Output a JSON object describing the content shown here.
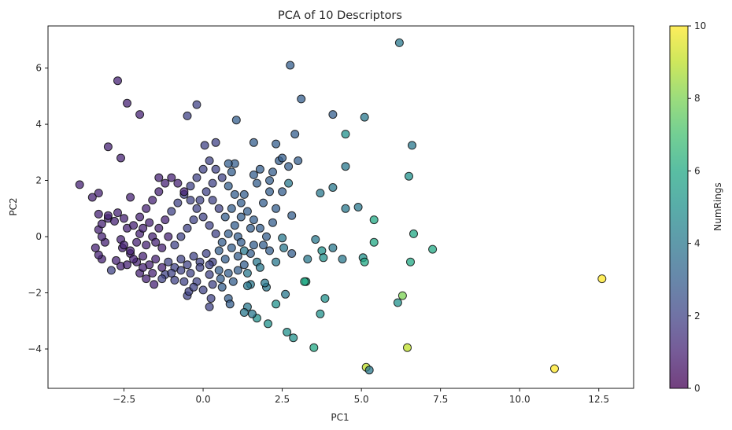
{
  "chart_data": {
    "type": "scatter",
    "title": "PCA of 10 Descriptors",
    "xlabel": "PC1",
    "ylabel": "PC2",
    "xlim": [
      -4.9,
      13.6
    ],
    "ylim": [
      -5.4,
      7.5
    ],
    "xticks": [
      -2.5,
      0.0,
      2.5,
      5.0,
      7.5,
      10.0,
      12.5
    ],
    "xtick_labels": [
      "−2.5",
      "0.0",
      "2.5",
      "5.0",
      "7.5",
      "10.0",
      "12.5"
    ],
    "yticks": [
      -4,
      -2,
      0,
      2,
      4,
      6
    ],
    "ytick_labels": [
      "−4",
      "−2",
      "0",
      "2",
      "4",
      "6"
    ],
    "grid": false,
    "colorbar": {
      "label": "NumRings",
      "range": [
        0,
        10
      ],
      "ticks": [
        0,
        2,
        4,
        6,
        8,
        10
      ],
      "colormap": "viridis"
    },
    "points": [
      {
        "x": 12.6,
        "y": -1.5,
        "c": 10
      },
      {
        "x": 11.1,
        "y": -4.7,
        "c": 10
      },
      {
        "x": 6.2,
        "y": 6.9,
        "c": 4
      },
      {
        "x": 2.75,
        "y": 6.1,
        "c": 3
      },
      {
        "x": -2.7,
        "y": 5.55,
        "c": 1
      },
      {
        "x": -2.4,
        "y": 4.75,
        "c": 1
      },
      {
        "x": -2.0,
        "y": 4.35,
        "c": 1
      },
      {
        "x": -0.5,
        "y": 4.3,
        "c": 2
      },
      {
        "x": -0.2,
        "y": 4.7,
        "c": 2
      },
      {
        "x": 1.05,
        "y": 4.15,
        "c": 3
      },
      {
        "x": 3.1,
        "y": 4.9,
        "c": 3
      },
      {
        "x": 4.1,
        "y": 4.35,
        "c": 3
      },
      {
        "x": 5.1,
        "y": 4.25,
        "c": 4
      },
      {
        "x": 4.5,
        "y": 3.65,
        "c": 5
      },
      {
        "x": 6.6,
        "y": 3.25,
        "c": 4
      },
      {
        "x": -3.0,
        "y": 3.2,
        "c": 1
      },
      {
        "x": -2.6,
        "y": 2.8,
        "c": 1
      },
      {
        "x": 4.5,
        "y": 2.5,
        "c": 4
      },
      {
        "x": 6.5,
        "y": 2.15,
        "c": 5
      },
      {
        "x": 2.9,
        "y": 3.65,
        "c": 3
      },
      {
        "x": 2.3,
        "y": 3.3,
        "c": 3
      },
      {
        "x": 1.6,
        "y": 3.35,
        "c": 3
      },
      {
        "x": 0.4,
        "y": 3.35,
        "c": 2
      },
      {
        "x": 0.05,
        "y": 3.25,
        "c": 2
      },
      {
        "x": -3.9,
        "y": 1.85,
        "c": 1
      },
      {
        "x": -3.3,
        "y": 1.55,
        "c": 1
      },
      {
        "x": -3.5,
        "y": 1.4,
        "c": 1
      },
      {
        "x": -2.3,
        "y": 1.4,
        "c": 1
      },
      {
        "x": 3.7,
        "y": 1.55,
        "c": 4
      },
      {
        "x": 4.1,
        "y": 1.75,
        "c": 4
      },
      {
        "x": 4.5,
        "y": 1.0,
        "c": 4
      },
      {
        "x": 4.9,
        "y": 1.05,
        "c": 4
      },
      {
        "x": 5.4,
        "y": 0.6,
        "c": 6
      },
      {
        "x": 6.65,
        "y": 0.1,
        "c": 6
      },
      {
        "x": 7.25,
        "y": -0.45,
        "c": 6
      },
      {
        "x": 5.4,
        "y": -0.2,
        "c": 6
      },
      {
        "x": 6.55,
        "y": -0.9,
        "c": 6
      },
      {
        "x": 5.05,
        "y": -0.75,
        "c": 5
      },
      {
        "x": 5.1,
        "y": -0.9,
        "c": 6
      },
      {
        "x": 4.4,
        "y": -0.8,
        "c": 4
      },
      {
        "x": 4.1,
        "y": -0.4,
        "c": 4
      },
      {
        "x": 3.55,
        "y": -0.1,
        "c": 4
      },
      {
        "x": 3.75,
        "y": -0.5,
        "c": 5
      },
      {
        "x": 3.8,
        "y": -0.75,
        "c": 5
      },
      {
        "x": 3.3,
        "y": -0.8,
        "c": 4
      },
      {
        "x": 2.8,
        "y": 0.75,
        "c": 3
      },
      {
        "x": 2.5,
        "y": -0.05,
        "c": 4
      },
      {
        "x": 2.55,
        "y": -0.4,
        "c": 4
      },
      {
        "x": 2.3,
        "y": -0.9,
        "c": 4
      },
      {
        "x": 3.25,
        "y": -1.6,
        "c": 6
      },
      {
        "x": 3.85,
        "y": -2.2,
        "c": 5
      },
      {
        "x": 3.7,
        "y": -2.75,
        "c": 5
      },
      {
        "x": 2.6,
        "y": -2.05,
        "c": 4
      },
      {
        "x": 2.3,
        "y": -2.4,
        "c": 5
      },
      {
        "x": 2.65,
        "y": -3.4,
        "c": 5
      },
      {
        "x": 2.85,
        "y": -3.6,
        "c": 5
      },
      {
        "x": 2.05,
        "y": -3.1,
        "c": 5
      },
      {
        "x": 1.7,
        "y": -2.9,
        "c": 5
      },
      {
        "x": 3.5,
        "y": -3.95,
        "c": 6
      },
      {
        "x": 6.15,
        "y": -2.35,
        "c": 5
      },
      {
        "x": 6.3,
        "y": -2.1,
        "c": 8
      },
      {
        "x": 6.45,
        "y": -3.95,
        "c": 9
      },
      {
        "x": 5.15,
        "y": -4.65,
        "c": 9
      },
      {
        "x": 5.25,
        "y": -4.75,
        "c": 4
      },
      {
        "x": 1.4,
        "y": -2.5,
        "c": 4
      },
      {
        "x": 1.3,
        "y": -2.7,
        "c": 4
      },
      {
        "x": 1.55,
        "y": -2.75,
        "c": 4
      },
      {
        "x": 0.8,
        "y": -2.2,
        "c": 3
      },
      {
        "x": 0.85,
        "y": -2.4,
        "c": 3
      },
      {
        "x": 0.2,
        "y": -2.5,
        "c": 2
      },
      {
        "x": 0.25,
        "y": -2.2,
        "c": 2
      },
      {
        "x": -0.5,
        "y": -2.1,
        "c": 2
      },
      {
        "x": -0.45,
        "y": -1.95,
        "c": 2
      },
      {
        "x": 2.0,
        "y": -1.8,
        "c": 4
      },
      {
        "x": 1.95,
        "y": -1.65,
        "c": 4
      },
      {
        "x": 1.5,
        "y": -1.7,
        "c": 4
      },
      {
        "x": 1.4,
        "y": -1.75,
        "c": 4
      },
      {
        "x": 0.95,
        "y": -1.6,
        "c": 3
      },
      {
        "x": 0.55,
        "y": -1.5,
        "c": 3
      },
      {
        "x": 0.2,
        "y": -1.35,
        "c": 2
      },
      {
        "x": -0.2,
        "y": -1.6,
        "c": 2
      },
      {
        "x": -0.6,
        "y": -1.6,
        "c": 2
      },
      {
        "x": -0.9,
        "y": -1.55,
        "c": 2
      },
      {
        "x": -1.2,
        "y": -1.35,
        "c": 2
      },
      {
        "x": -1.55,
        "y": -1.7,
        "c": 1
      },
      {
        "x": -1.8,
        "y": -1.5,
        "c": 1
      },
      {
        "x": -2.0,
        "y": -1.3,
        "c": 1
      },
      {
        "x": -2.6,
        "y": -1.05,
        "c": 1
      },
      {
        "x": -2.75,
        "y": -0.85,
        "c": 1
      },
      {
        "x": -2.9,
        "y": -1.2,
        "c": 2
      },
      {
        "x": -3.2,
        "y": -0.8,
        "c": 1
      },
      {
        "x": -3.3,
        "y": -0.65,
        "c": 1
      },
      {
        "x": -3.4,
        "y": -0.4,
        "c": 1
      },
      {
        "x": -3.1,
        "y": -0.2,
        "c": 1
      },
      {
        "x": -3.2,
        "y": 0.0,
        "c": 1
      },
      {
        "x": -3.3,
        "y": 0.25,
        "c": 1
      },
      {
        "x": -3.2,
        "y": 0.45,
        "c": 1
      },
      {
        "x": -3.0,
        "y": 0.65,
        "c": 1
      },
      {
        "x": -3.3,
        "y": 0.8,
        "c": 1
      },
      {
        "x": -3.0,
        "y": 0.75,
        "c": 1
      },
      {
        "x": -2.8,
        "y": 0.55,
        "c": 1
      },
      {
        "x": -2.7,
        "y": 0.85,
        "c": 1
      },
      {
        "x": -2.5,
        "y": 0.65,
        "c": 1
      },
      {
        "x": -2.4,
        "y": 0.3,
        "c": 1
      },
      {
        "x": -2.6,
        "y": -0.1,
        "c": 1
      },
      {
        "x": -2.55,
        "y": -0.4,
        "c": 1
      },
      {
        "x": -2.3,
        "y": -0.6,
        "c": 1
      },
      {
        "x": -2.1,
        "y": -0.9,
        "c": 1
      },
      {
        "x": -1.9,
        "y": -0.7,
        "c": 1
      },
      {
        "x": -1.7,
        "y": -1.0,
        "c": 1
      },
      {
        "x": -1.5,
        "y": -0.8,
        "c": 1
      },
      {
        "x": -1.3,
        "y": -1.1,
        "c": 1
      },
      {
        "x": -1.1,
        "y": -0.9,
        "c": 2
      },
      {
        "x": -0.9,
        "y": -1.1,
        "c": 2
      },
      {
        "x": -0.7,
        "y": -0.8,
        "c": 2
      },
      {
        "x": -0.5,
        "y": -1.0,
        "c": 2
      },
      {
        "x": -0.3,
        "y": -0.7,
        "c": 2
      },
      {
        "x": -0.1,
        "y": -0.9,
        "c": 2
      },
      {
        "x": 0.1,
        "y": -0.6,
        "c": 2
      },
      {
        "x": 0.3,
        "y": -0.9,
        "c": 2
      },
      {
        "x": 0.5,
        "y": -0.5,
        "c": 3
      },
      {
        "x": 0.7,
        "y": -0.8,
        "c": 3
      },
      {
        "x": 0.9,
        "y": -0.4,
        "c": 3
      },
      {
        "x": 1.1,
        "y": -0.7,
        "c": 3
      },
      {
        "x": 1.3,
        "y": -1.0,
        "c": 3
      },
      {
        "x": 1.5,
        "y": -0.6,
        "c": 3
      },
      {
        "x": 1.7,
        "y": -0.9,
        "c": 4
      },
      {
        "x": 1.9,
        "y": -0.3,
        "c": 3
      },
      {
        "x": 2.0,
        "y": 0.0,
        "c": 3
      },
      {
        "x": 1.8,
        "y": 0.3,
        "c": 3
      },
      {
        "x": 1.6,
        "y": 0.6,
        "c": 3
      },
      {
        "x": 1.4,
        "y": 0.9,
        "c": 3
      },
      {
        "x": 1.2,
        "y": 1.2,
        "c": 3
      },
      {
        "x": 1.0,
        "y": 1.5,
        "c": 3
      },
      {
        "x": 0.8,
        "y": 1.8,
        "c": 3
      },
      {
        "x": 0.6,
        "y": 2.1,
        "c": 2
      },
      {
        "x": 0.4,
        "y": 2.4,
        "c": 2
      },
      {
        "x": 0.2,
        "y": 2.7,
        "c": 2
      },
      {
        "x": 0.0,
        "y": 2.4,
        "c": 2
      },
      {
        "x": -0.2,
        "y": 2.1,
        "c": 2
      },
      {
        "x": -0.4,
        "y": 1.8,
        "c": 2
      },
      {
        "x": -0.6,
        "y": 1.5,
        "c": 2
      },
      {
        "x": -0.8,
        "y": 1.2,
        "c": 2
      },
      {
        "x": -1.0,
        "y": 0.9,
        "c": 2
      },
      {
        "x": -1.2,
        "y": 0.6,
        "c": 1
      },
      {
        "x": -1.4,
        "y": 0.3,
        "c": 1
      },
      {
        "x": -1.6,
        "y": 0.0,
        "c": 1
      },
      {
        "x": -1.8,
        "y": -0.3,
        "c": 1
      },
      {
        "x": -2.0,
        "y": 0.1,
        "c": 1
      },
      {
        "x": -2.2,
        "y": 0.4,
        "c": 1
      },
      {
        "x": -2.0,
        "y": 0.7,
        "c": 1
      },
      {
        "x": -1.8,
        "y": 1.0,
        "c": 1
      },
      {
        "x": -1.6,
        "y": 1.3,
        "c": 1
      },
      {
        "x": -1.4,
        "y": 1.6,
        "c": 1
      },
      {
        "x": -1.2,
        "y": 1.9,
        "c": 1
      },
      {
        "x": -1.4,
        "y": 2.1,
        "c": 1
      },
      {
        "x": -1.0,
        "y": 2.1,
        "c": 1
      },
      {
        "x": -0.8,
        "y": 1.9,
        "c": 1
      },
      {
        "x": -0.6,
        "y": 1.6,
        "c": 1
      },
      {
        "x": -0.4,
        "y": 1.3,
        "c": 2
      },
      {
        "x": -0.2,
        "y": 1.0,
        "c": 2
      },
      {
        "x": 0.0,
        "y": 0.7,
        "c": 2
      },
      {
        "x": 0.2,
        "y": 0.4,
        "c": 2
      },
      {
        "x": 0.4,
        "y": 0.1,
        "c": 2
      },
      {
        "x": 0.6,
        "y": -0.2,
        "c": 3
      },
      {
        "x": 0.8,
        "y": 0.1,
        "c": 3
      },
      {
        "x": 1.0,
        "y": 0.4,
        "c": 3
      },
      {
        "x": 1.2,
        "y": 0.7,
        "c": 3
      },
      {
        "x": 0.9,
        "y": 1.0,
        "c": 3
      },
      {
        "x": 0.7,
        "y": 0.7,
        "c": 3
      },
      {
        "x": 0.5,
        "y": 1.0,
        "c": 2
      },
      {
        "x": 0.3,
        "y": 1.3,
        "c": 2
      },
      {
        "x": 0.1,
        "y": 1.6,
        "c": 2
      },
      {
        "x": -0.1,
        "y": 1.3,
        "c": 2
      },
      {
        "x": -0.3,
        "y": 0.6,
        "c": 2
      },
      {
        "x": -0.5,
        "y": 0.3,
        "c": 2
      },
      {
        "x": -0.7,
        "y": 0.0,
        "c": 2
      },
      {
        "x": -0.9,
        "y": -0.3,
        "c": 2
      },
      {
        "x": -1.1,
        "y": 0.0,
        "c": 1
      },
      {
        "x": -1.3,
        "y": -0.4,
        "c": 1
      },
      {
        "x": -1.5,
        "y": -0.2,
        "c": 1
      },
      {
        "x": -1.7,
        "y": 0.5,
        "c": 1
      },
      {
        "x": -1.9,
        "y": 0.3,
        "c": 1
      },
      {
        "x": -2.1,
        "y": -0.2,
        "c": 1
      },
      {
        "x": -2.3,
        "y": -0.5,
        "c": 1
      },
      {
        "x": -2.5,
        "y": -0.3,
        "c": 1
      },
      {
        "x": -2.2,
        "y": -0.8,
        "c": 1
      },
      {
        "x": -2.4,
        "y": -1.0,
        "c": 1
      },
      {
        "x": -1.9,
        "y": -1.1,
        "c": 1
      },
      {
        "x": -1.6,
        "y": -1.3,
        "c": 1
      },
      {
        "x": -1.3,
        "y": -1.5,
        "c": 2
      },
      {
        "x": -1.0,
        "y": -1.3,
        "c": 2
      },
      {
        "x": -0.7,
        "y": -1.2,
        "c": 2
      },
      {
        "x": -0.4,
        "y": -1.3,
        "c": 2
      },
      {
        "x": -0.1,
        "y": -1.1,
        "c": 2
      },
      {
        "x": 0.2,
        "y": -1.0,
        "c": 2
      },
      {
        "x": 0.5,
        "y": -1.2,
        "c": 3
      },
      {
        "x": 0.8,
        "y": -1.3,
        "c": 3
      },
      {
        "x": 1.1,
        "y": -1.2,
        "c": 3
      },
      {
        "x": 1.4,
        "y": -1.3,
        "c": 4
      },
      {
        "x": 0.6,
        "y": -1.8,
        "c": 3
      },
      {
        "x": 0.3,
        "y": -1.7,
        "c": 2
      },
      {
        "x": 0.0,
        "y": -1.9,
        "c": 2
      },
      {
        "x": -0.3,
        "y": -1.8,
        "c": 2
      },
      {
        "x": 1.8,
        "y": 2.4,
        "c": 3
      },
      {
        "x": 1.6,
        "y": 2.2,
        "c": 3
      },
      {
        "x": 1.7,
        "y": 1.9,
        "c": 3
      },
      {
        "x": 2.1,
        "y": 2.0,
        "c": 3
      },
      {
        "x": 2.4,
        "y": 2.7,
        "c": 3
      },
      {
        "x": 2.7,
        "y": 2.5,
        "c": 3
      },
      {
        "x": 2.7,
        "y": 1.9,
        "c": 4
      },
      {
        "x": 2.5,
        "y": 1.6,
        "c": 3
      },
      {
        "x": 2.1,
        "y": 1.6,
        "c": 3
      },
      {
        "x": 1.3,
        "y": 1.5,
        "c": 3
      },
      {
        "x": 1.9,
        "y": 1.2,
        "c": 3
      },
      {
        "x": 2.3,
        "y": 1.0,
        "c": 3
      },
      {
        "x": 2.2,
        "y": 0.5,
        "c": 3
      },
      {
        "x": 1.5,
        "y": 0.3,
        "c": 3
      },
      {
        "x": 1.1,
        "y": 0.0,
        "c": 3
      },
      {
        "x": 3.0,
        "y": 2.7,
        "c": 3
      },
      {
        "x": 2.5,
        "y": 2.8,
        "c": 3
      },
      {
        "x": 2.2,
        "y": 2.3,
        "c": 3
      },
      {
        "x": 1.0,
        "y": 2.6,
        "c": 3
      },
      {
        "x": 0.8,
        "y": 2.6,
        "c": 3
      },
      {
        "x": 0.9,
        "y": 2.3,
        "c": 3
      },
      {
        "x": 0.3,
        "y": 1.9,
        "c": 2
      },
      {
        "x": 1.2,
        "y": -0.2,
        "c": 3
      },
      {
        "x": 1.6,
        "y": -0.3,
        "c": 3
      },
      {
        "x": 1.3,
        "y": -0.5,
        "c": 4
      },
      {
        "x": 2.1,
        "y": -0.5,
        "c": 3
      },
      {
        "x": 1.8,
        "y": -1.1,
        "c": 4
      },
      {
        "x": 2.8,
        "y": -0.6,
        "c": 3
      },
      {
        "x": 3.2,
        "y": -1.6,
        "c": 6
      }
    ]
  }
}
